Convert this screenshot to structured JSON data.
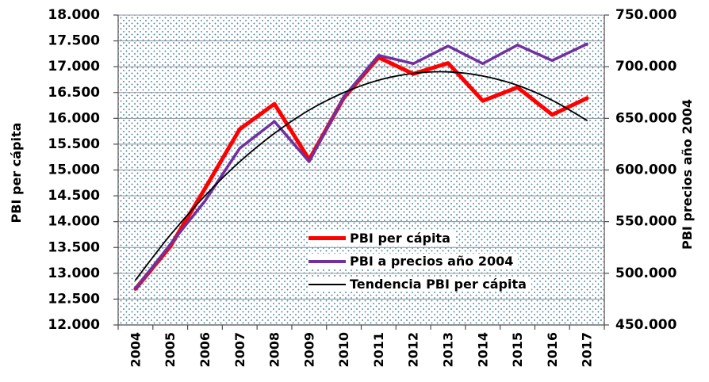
{
  "chart_data": {
    "type": "line",
    "title": "",
    "categories": [
      "2004",
      "2005",
      "2006",
      "2007",
      "2008",
      "2009",
      "2010",
      "2011",
      "2012",
      "2013",
      "2014",
      "2015",
      "2016",
      "2017"
    ],
    "series": [
      {
        "name": "PBI per cápita",
        "axis": "left",
        "color": "#FF0000",
        "line_width": 5,
        "smooth": false,
        "values": [
          12700,
          13520,
          14640,
          15790,
          16280,
          15200,
          16400,
          17180,
          16860,
          17070,
          16340,
          16600,
          16070,
          16390
        ]
      },
      {
        "name": "PBI a precios año 2004",
        "axis": "right",
        "color": "#7030A0",
        "line_width": 3.5,
        "smooth": false,
        "values": [
          485000,
          528000,
          570000,
          621000,
          647000,
          608000,
          671000,
          711000,
          703000,
          720000,
          703000,
          721000,
          706000,
          722000
        ]
      },
      {
        "name": "Tendencia PBI per cápita",
        "axis": "left",
        "color": "#000000",
        "line_width": 1.8,
        "smooth": true,
        "values": [
          12870,
          13740,
          14500,
          15160,
          15710,
          16160,
          16500,
          16740,
          16870,
          16900,
          16820,
          16640,
          16350,
          15960
        ]
      }
    ],
    "left_axis": {
      "label": "PBI per cápita",
      "min": 12000,
      "max": 18000,
      "grid_step": 500,
      "tick_labels": [
        "18.000",
        "17.500",
        "17.000",
        "16.500",
        "16.000",
        "15.500",
        "15.000",
        "14.500",
        "14.000",
        "13.500",
        "13.000",
        "12.500",
        "12.000"
      ]
    },
    "right_axis": {
      "label": "PBI precios año 2004",
      "min": 450000,
      "max": 750000,
      "label_step": 50000,
      "tick_labels": [
        "750.000",
        "700.000",
        "650.000",
        "600.000",
        "550.000",
        "500.000",
        "450.000"
      ]
    },
    "legend": {
      "position": "inside-lower-center",
      "items": [
        {
          "label": "PBI per cápita",
          "color": "#FF0000",
          "swatch_height": 5
        },
        {
          "label": "PBI a precios año 2004",
          "color": "#7030A0",
          "swatch_height": 4
        },
        {
          "label": "Tendencia PBI per cápita",
          "color": "#000000",
          "swatch_height": 2
        }
      ]
    },
    "grid": true
  },
  "colors": {
    "background": "#FFFFFF",
    "plot_dots": "#3E7896",
    "gridline": "#8A929C",
    "axis": "#4D4D4D",
    "text": "#000000"
  }
}
